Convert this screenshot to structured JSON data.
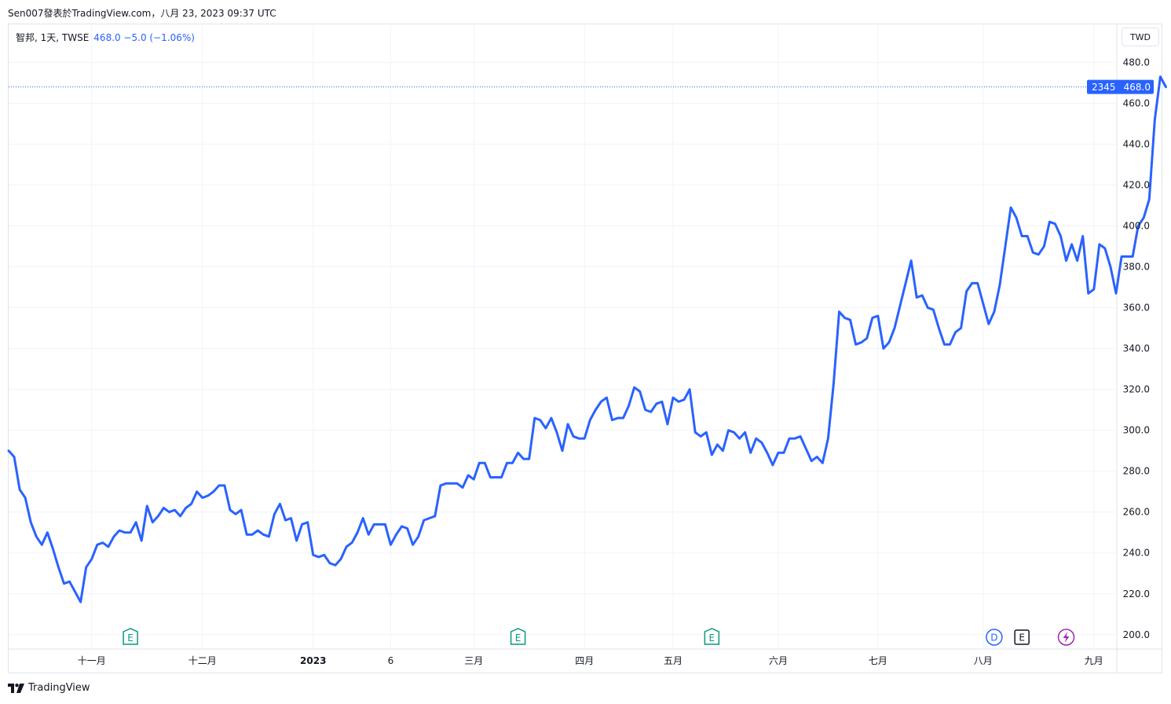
{
  "header": {
    "caption": "Sen007發表於TradingView.com，八月 23, 2023 09:37 UTC"
  },
  "legend": {
    "symbol": "智邦, 1天, TWSE",
    "values": "468.0  −5.0 (−1.06%)"
  },
  "currency": "TWD",
  "price_badge": {
    "countdown": "2345",
    "last": "468.0"
  },
  "footer": {
    "brand": "TradingView"
  },
  "colors": {
    "line": "#2962ff",
    "grid": "#f0f3fa",
    "axis_text": "#131722",
    "earnings": "#089981",
    "dividend": "#2962ff",
    "split": "#9c27b0"
  },
  "chart_data": {
    "type": "line",
    "ylim": [
      193,
      499
    ],
    "y_ticks": [
      200,
      220,
      240,
      260,
      280,
      300,
      320,
      340,
      360,
      380,
      400,
      420,
      440,
      460,
      480
    ],
    "y_tick_labels": [
      "200.0",
      "220.0",
      "240.0",
      "260.0",
      "280.0",
      "300.0",
      "320.0",
      "340.0",
      "360.0",
      "380.0",
      "400.0",
      "420.0",
      "440.0",
      "460.0",
      "480.0"
    ],
    "x_labels": [
      "十一月",
      "十二月",
      "2023",
      "6",
      "三月",
      "四月",
      "五月",
      "六月",
      "七月",
      "八月",
      "九月"
    ],
    "x_label_index": [
      15,
      35,
      55,
      69,
      84,
      104,
      120,
      139,
      157,
      176,
      196
    ],
    "event_markers": [
      {
        "label": "E",
        "index": 22,
        "kind": "earnings"
      },
      {
        "label": "E",
        "index": 92,
        "kind": "earnings"
      },
      {
        "label": "E",
        "index": 127,
        "kind": "earnings"
      },
      {
        "label": "D",
        "index": 178,
        "kind": "dividend"
      },
      {
        "label": "E",
        "index": 183,
        "kind": "earnings"
      },
      {
        "label": "⚡",
        "index": 191,
        "kind": "split"
      }
    ],
    "last_value": 468.0,
    "series": [
      {
        "values": [
          290,
          287,
          271,
          267,
          255,
          248,
          244,
          250,
          242,
          233,
          225,
          226,
          221,
          216,
          233,
          237,
          244,
          245,
          243,
          248,
          251,
          250,
          250,
          255,
          246,
          263,
          255,
          258,
          262,
          260,
          261,
          258,
          262,
          264,
          270,
          267,
          268,
          270,
          273,
          273,
          261,
          259,
          261,
          249,
          249,
          251,
          249,
          248,
          259,
          264,
          256,
          257,
          246,
          254,
          255,
          239,
          238,
          239,
          235,
          234,
          237,
          243,
          245,
          250,
          257,
          249,
          254,
          254,
          254,
          244,
          249,
          253,
          252,
          244,
          248,
          256,
          257,
          258,
          273,
          274,
          274,
          274,
          272,
          278,
          276,
          284,
          284,
          277,
          277,
          277,
          284,
          284,
          289,
          286,
          286,
          306,
          305,
          301,
          306,
          299,
          290,
          303,
          297,
          296,
          296,
          305,
          310,
          314,
          316,
          305,
          306,
          306,
          312,
          321,
          319,
          310,
          309,
          313,
          314,
          303,
          316,
          314,
          315,
          320,
          299,
          297,
          299,
          288,
          293,
          290,
          300,
          299,
          296,
          299,
          289,
          296,
          294,
          289,
          283,
          289,
          289,
          296,
          296,
          297,
          291,
          285,
          287,
          284,
          296,
          323,
          358,
          355,
          354,
          342,
          343,
          345,
          355,
          356,
          340,
          343,
          350,
          361,
          372,
          383,
          365,
          366,
          360,
          359,
          350,
          342,
          342,
          348,
          350,
          368,
          372,
          372,
          362,
          352,
          358,
          371,
          390,
          409,
          404,
          395,
          395,
          387,
          386,
          390,
          402,
          401,
          395,
          383,
          391,
          383,
          395,
          367,
          369,
          391,
          389,
          380,
          367,
          385,
          385,
          385,
          400,
          404,
          413,
          452,
          473,
          468
        ]
      }
    ]
  }
}
